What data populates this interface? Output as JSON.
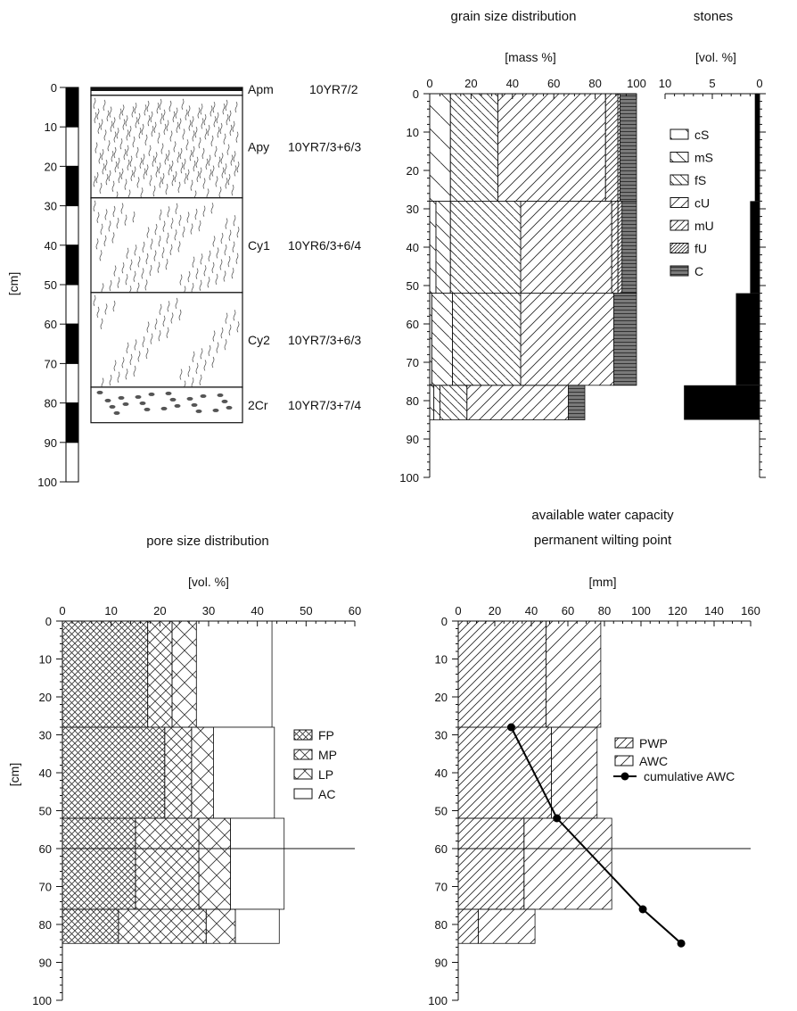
{
  "profile": {
    "ylabel": "[cm]",
    "depth_ticks": [
      "0",
      "10",
      "20",
      "30",
      "40",
      "50",
      "60",
      "70",
      "80",
      "90",
      "100"
    ],
    "horizons": [
      {
        "name": "Apm",
        "color": "10YR7/2",
        "top": 0,
        "bottom": 2
      },
      {
        "name": "Apy",
        "color": "10YR7/3+6/3",
        "top": 2,
        "bottom": 28
      },
      {
        "name": "Cy1",
        "color": "10YR6/3+6/4",
        "top": 28,
        "bottom": 52
      },
      {
        "name": "Cy2",
        "color": "10YR7/3+6/3",
        "top": 52,
        "bottom": 76
      },
      {
        "name": "2Cr",
        "color": "10YR7/3+7/4",
        "top": 76,
        "bottom": 85
      }
    ]
  },
  "chart_data": [
    {
      "type": "bar",
      "orientation": "horizontal-stacked",
      "title": "grain size distribution",
      "xlabel": "[mass %]",
      "xlim": [
        0,
        100
      ],
      "x_ticks": [
        "0",
        "20",
        "40",
        "60",
        "80",
        "100"
      ],
      "ylim": [
        0,
        100
      ],
      "y_ticks": [
        "0",
        "10",
        "20",
        "30",
        "40",
        "50",
        "60",
        "70",
        "80",
        "90",
        "100"
      ],
      "legend_position": "right",
      "layers": [
        {
          "top": 0,
          "bottom": 28
        },
        {
          "top": 28,
          "bottom": 52
        },
        {
          "top": 52,
          "bottom": 76
        },
        {
          "top": 76,
          "bottom": 85
        }
      ],
      "series": [
        {
          "name": "cS",
          "values": [
            10,
            3,
            1,
            2
          ]
        },
        {
          "name": "mS",
          "values": [
            0,
            7,
            10,
            3
          ]
        },
        {
          "name": "fS",
          "values": [
            23,
            34,
            33,
            13
          ]
        },
        {
          "name": "cU",
          "values": [
            52,
            44,
            45,
            49
          ]
        },
        {
          "name": "mU",
          "values": [
            6,
            3,
            0,
            0
          ]
        },
        {
          "name": "fU",
          "values": [
            1,
            2,
            0,
            0
          ]
        },
        {
          "name": "C",
          "values": [
            8,
            7,
            11,
            8
          ]
        }
      ]
    },
    {
      "type": "bar",
      "orientation": "horizontal",
      "title": "stones",
      "xlabel": "[vol. %]",
      "xlim": [
        10,
        0
      ],
      "x_ticks": [
        "10",
        "5",
        "0"
      ],
      "ylim": [
        0,
        100
      ],
      "layers": [
        {
          "top": 0,
          "bottom": 28
        },
        {
          "top": 28,
          "bottom": 52
        },
        {
          "top": 52,
          "bottom": 76
        },
        {
          "top": 76,
          "bottom": 85
        }
      ],
      "values": [
        0.5,
        1,
        2.5,
        8
      ]
    },
    {
      "type": "bar",
      "orientation": "horizontal-stacked",
      "title": "pore size distribution",
      "xlabel": "[vol. %]",
      "ylabel": "[cm]",
      "xlim": [
        0,
        60
      ],
      "x_ticks": [
        "0",
        "10",
        "20",
        "30",
        "40",
        "50",
        "60"
      ],
      "ylim": [
        0,
        100
      ],
      "y_ticks": [
        "0",
        "10",
        "20",
        "30",
        "40",
        "50",
        "60",
        "70",
        "80",
        "90",
        "100"
      ],
      "reference_depth": 60,
      "legend_position": "right",
      "layers": [
        {
          "top": 0,
          "bottom": 28
        },
        {
          "top": 28,
          "bottom": 52
        },
        {
          "top": 52,
          "bottom": 76
        },
        {
          "top": 76,
          "bottom": 85
        }
      ],
      "series": [
        {
          "name": "FP",
          "values": [
            17.5,
            21,
            15,
            11.5
          ]
        },
        {
          "name": "MP",
          "values": [
            5,
            5.5,
            13,
            18
          ]
        },
        {
          "name": "LP",
          "values": [
            5,
            4.5,
            6.5,
            6
          ]
        },
        {
          "name": "AC",
          "values": [
            15.5,
            12.5,
            11,
            9
          ]
        }
      ]
    },
    {
      "type": "bar",
      "orientation": "horizontal-stacked",
      "title": "available water capacity",
      "subtitle": "permanent wilting point",
      "xlabel": "[mm]",
      "xlim": [
        0,
        160
      ],
      "x_ticks": [
        "0",
        "20",
        "40",
        "60",
        "80",
        "100",
        "120",
        "140",
        "160"
      ],
      "ylim": [
        0,
        100
      ],
      "y_ticks": [
        "0",
        "10",
        "20",
        "30",
        "40",
        "50",
        "60",
        "70",
        "80",
        "90",
        "100"
      ],
      "reference_depth": 60,
      "legend_position": "right",
      "layers": [
        {
          "top": 0,
          "bottom": 28
        },
        {
          "top": 28,
          "bottom": 52
        },
        {
          "top": 52,
          "bottom": 76
        },
        {
          "top": 76,
          "bottom": 85
        }
      ],
      "series": [
        {
          "name": "PWP",
          "values": [
            48,
            51,
            36,
            11
          ]
        },
        {
          "name": "AWC",
          "values": [
            30,
            25,
            48,
            31
          ]
        }
      ],
      "cumulative_awc": {
        "name": "cumulative AWC",
        "x": [
          29,
          54,
          101,
          122
        ],
        "depth": [
          28,
          52,
          76,
          85
        ]
      }
    }
  ]
}
